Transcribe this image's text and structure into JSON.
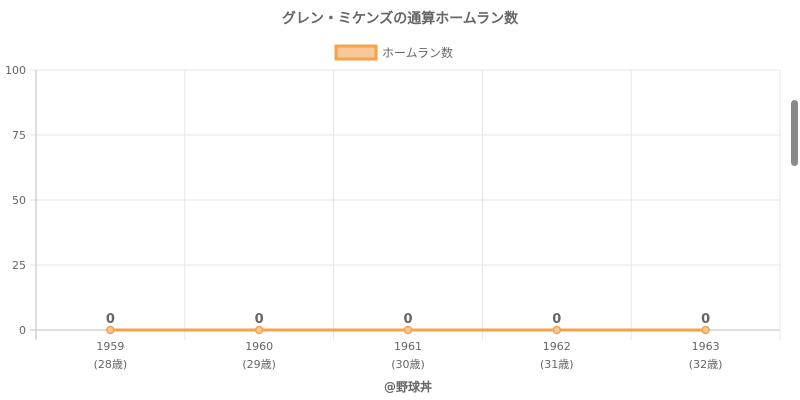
{
  "chart_data": {
    "type": "line",
    "title": "グレン・ミケンズの通算ホームラン数",
    "categories": [
      "1959",
      "1960",
      "1961",
      "1962",
      "1963"
    ],
    "sublabels": [
      "(28歳)",
      "(29歳)",
      "(30歳)",
      "(31歳)",
      "(32歳)"
    ],
    "series": [
      {
        "name": "ホームラン数",
        "values": [
          0,
          0,
          0,
          0,
          0
        ],
        "color": "#f7a24a",
        "fill": "#f9c89a"
      }
    ],
    "ylim": [
      0,
      100
    ],
    "yticks": [
      "0",
      "25",
      "50",
      "75",
      "100"
    ],
    "grid": true,
    "legend": "top",
    "data_labels": true
  },
  "credit": "@野球丼"
}
